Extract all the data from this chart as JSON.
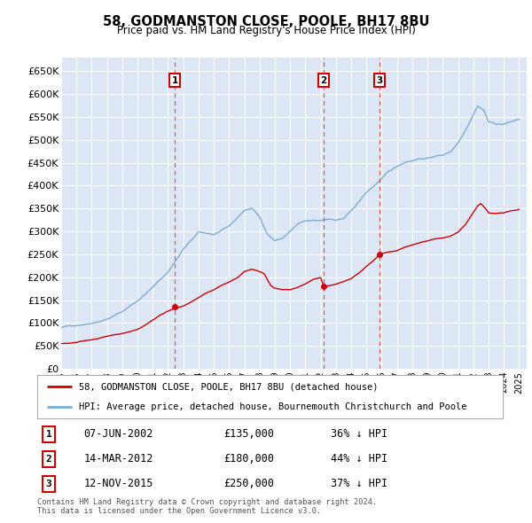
{
  "title": "58, GODMANSTON CLOSE, POOLE, BH17 8BU",
  "subtitle": "Price paid vs. HM Land Registry's House Price Index (HPI)",
  "ylabel_ticks": [
    0,
    50000,
    100000,
    150000,
    200000,
    250000,
    300000,
    350000,
    400000,
    450000,
    500000,
    550000,
    600000,
    650000
  ],
  "ylim": [
    0,
    680000
  ],
  "xlim_start": 1995.0,
  "xlim_end": 2025.5,
  "background_color": "#dce6f5",
  "plot_bg_color": "#dce6f5",
  "sale_dates_decimal": [
    2002.44,
    2012.2,
    2015.87
  ],
  "sale_prices": [
    135000,
    180000,
    250000
  ],
  "sale_labels": [
    "1",
    "2",
    "3"
  ],
  "sale_date_strings": [
    "07-JUN-2002",
    "14-MAR-2012",
    "12-NOV-2015"
  ],
  "sale_price_strings": [
    "£135,000",
    "£180,000",
    "£250,000"
  ],
  "sale_pct_strings": [
    "36% ↓ HPI",
    "44% ↓ HPI",
    "37% ↓ HPI"
  ],
  "legend_line1": "58, GODMANSTON CLOSE, POOLE, BH17 8BU (detached house)",
  "legend_line2": "HPI: Average price, detached house, Bournemouth Christchurch and Poole",
  "footnote": "Contains HM Land Registry data © Crown copyright and database right 2024.\nThis data is licensed under the Open Government Licence v3.0.",
  "red_color": "#cc0000",
  "blue_color": "#7aadd4",
  "grid_color": "#ffffff",
  "hpi_keypoints": [
    [
      1995.0,
      90000
    ],
    [
      1996.0,
      95000
    ],
    [
      1997.0,
      102000
    ],
    [
      1998.0,
      112000
    ],
    [
      1999.0,
      128000
    ],
    [
      2000.0,
      152000
    ],
    [
      2001.0,
      182000
    ],
    [
      2002.0,
      215000
    ],
    [
      2003.0,
      265000
    ],
    [
      2004.0,
      300000
    ],
    [
      2005.0,
      295000
    ],
    [
      2006.0,
      310000
    ],
    [
      2007.0,
      345000
    ],
    [
      2007.5,
      350000
    ],
    [
      2008.0,
      330000
    ],
    [
      2008.5,
      295000
    ],
    [
      2009.0,
      280000
    ],
    [
      2009.5,
      285000
    ],
    [
      2010.0,
      300000
    ],
    [
      2010.5,
      315000
    ],
    [
      2011.0,
      320000
    ],
    [
      2011.5,
      320000
    ],
    [
      2012.0,
      320000
    ],
    [
      2012.5,
      325000
    ],
    [
      2013.0,
      322000
    ],
    [
      2013.5,
      325000
    ],
    [
      2014.0,
      340000
    ],
    [
      2014.5,
      360000
    ],
    [
      2015.0,
      380000
    ],
    [
      2015.5,
      395000
    ],
    [
      2016.0,
      410000
    ],
    [
      2016.5,
      425000
    ],
    [
      2017.0,
      435000
    ],
    [
      2017.5,
      445000
    ],
    [
      2018.0,
      450000
    ],
    [
      2018.5,
      455000
    ],
    [
      2019.0,
      455000
    ],
    [
      2019.5,
      460000
    ],
    [
      2020.0,
      462000
    ],
    [
      2020.5,
      470000
    ],
    [
      2021.0,
      490000
    ],
    [
      2021.5,
      520000
    ],
    [
      2022.0,
      555000
    ],
    [
      2022.3,
      575000
    ],
    [
      2022.7,
      565000
    ],
    [
      2023.0,
      540000
    ],
    [
      2023.5,
      535000
    ],
    [
      2024.0,
      535000
    ],
    [
      2024.5,
      540000
    ],
    [
      2025.0,
      545000
    ]
  ],
  "red_keypoints": [
    [
      1995.0,
      55000
    ],
    [
      1995.5,
      55500
    ],
    [
      1996.0,
      57000
    ],
    [
      1996.5,
      60000
    ],
    [
      1997.0,
      63000
    ],
    [
      1997.5,
      67000
    ],
    [
      1998.0,
      71000
    ],
    [
      1998.5,
      75000
    ],
    [
      1999.0,
      78000
    ],
    [
      1999.5,
      82000
    ],
    [
      2000.0,
      87000
    ],
    [
      2000.5,
      97000
    ],
    [
      2001.0,
      108000
    ],
    [
      2001.5,
      120000
    ],
    [
      2002.0,
      128000
    ],
    [
      2002.44,
      135000
    ],
    [
      2003.0,
      140000
    ],
    [
      2003.5,
      148000
    ],
    [
      2004.0,
      158000
    ],
    [
      2004.5,
      168000
    ],
    [
      2005.0,
      175000
    ],
    [
      2005.5,
      185000
    ],
    [
      2006.0,
      192000
    ],
    [
      2006.5,
      200000
    ],
    [
      2007.0,
      215000
    ],
    [
      2007.5,
      220000
    ],
    [
      2008.0,
      215000
    ],
    [
      2008.3,
      210000
    ],
    [
      2008.7,
      185000
    ],
    [
      2009.0,
      178000
    ],
    [
      2009.5,
      174000
    ],
    [
      2010.0,
      173000
    ],
    [
      2010.5,
      178000
    ],
    [
      2011.0,
      185000
    ],
    [
      2011.5,
      195000
    ],
    [
      2012.0,
      200000
    ],
    [
      2012.2,
      180000
    ],
    [
      2012.5,
      182000
    ],
    [
      2013.0,
      185000
    ],
    [
      2013.5,
      190000
    ],
    [
      2014.0,
      198000
    ],
    [
      2014.5,
      210000
    ],
    [
      2015.0,
      225000
    ],
    [
      2015.5,
      238000
    ],
    [
      2015.87,
      250000
    ],
    [
      2016.0,
      252000
    ],
    [
      2016.5,
      255000
    ],
    [
      2017.0,
      258000
    ],
    [
      2017.5,
      265000
    ],
    [
      2018.0,
      270000
    ],
    [
      2018.5,
      276000
    ],
    [
      2019.0,
      280000
    ],
    [
      2019.5,
      284000
    ],
    [
      2020.0,
      286000
    ],
    [
      2020.5,
      290000
    ],
    [
      2021.0,
      298000
    ],
    [
      2021.5,
      315000
    ],
    [
      2022.0,
      340000
    ],
    [
      2022.3,
      355000
    ],
    [
      2022.5,
      360000
    ],
    [
      2022.8,
      350000
    ],
    [
      2023.0,
      340000
    ],
    [
      2023.5,
      338000
    ],
    [
      2024.0,
      340000
    ],
    [
      2024.5,
      345000
    ],
    [
      2025.0,
      348000
    ]
  ]
}
